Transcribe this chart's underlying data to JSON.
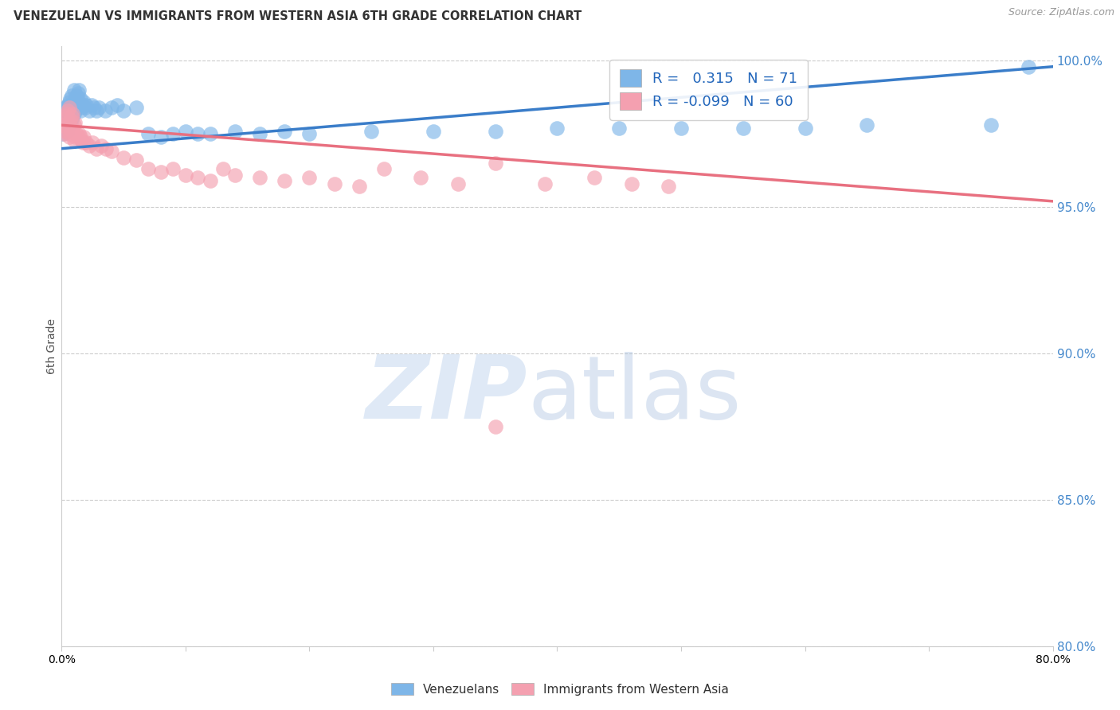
{
  "title": "VENEZUELAN VS IMMIGRANTS FROM WESTERN ASIA 6TH GRADE CORRELATION CHART",
  "source": "Source: ZipAtlas.com",
  "ylabel": "6th Grade",
  "r_blue": 0.315,
  "n_blue": 71,
  "r_pink": -0.099,
  "n_pink": 60,
  "xmin": 0.0,
  "xmax": 0.8,
  "ymin": 0.8,
  "ymax": 1.005,
  "right_ytick_vals": [
    1.0,
    0.95,
    0.9,
    0.85,
    0.8
  ],
  "right_ytick_labels": [
    "100.0%",
    "95.0%",
    "90.0%",
    "85.0%",
    "80.0%"
  ],
  "blue_color": "#7EB6E8",
  "pink_color": "#F4A0B0",
  "blue_line_color": "#3A7DC9",
  "pink_line_color": "#E87080",
  "background_color": "#FFFFFF",
  "blue_scatter_x": [
    0.001,
    0.002,
    0.002,
    0.003,
    0.003,
    0.004,
    0.004,
    0.004,
    0.005,
    0.005,
    0.005,
    0.006,
    0.006,
    0.006,
    0.007,
    0.007,
    0.007,
    0.008,
    0.008,
    0.008,
    0.009,
    0.009,
    0.01,
    0.01,
    0.01,
    0.011,
    0.011,
    0.012,
    0.012,
    0.013,
    0.013,
    0.014,
    0.014,
    0.015,
    0.015,
    0.016,
    0.017,
    0.018,
    0.019,
    0.02,
    0.022,
    0.024,
    0.026,
    0.028,
    0.03,
    0.035,
    0.04,
    0.045,
    0.05,
    0.06,
    0.07,
    0.08,
    0.09,
    0.1,
    0.11,
    0.12,
    0.14,
    0.16,
    0.18,
    0.2,
    0.25,
    0.3,
    0.35,
    0.4,
    0.45,
    0.5,
    0.55,
    0.6,
    0.65,
    0.75,
    0.78
  ],
  "blue_scatter_y": [
    0.975,
    0.978,
    0.982,
    0.979,
    0.984,
    0.976,
    0.98,
    0.984,
    0.977,
    0.981,
    0.985,
    0.978,
    0.982,
    0.986,
    0.979,
    0.983,
    0.987,
    0.98,
    0.984,
    0.988,
    0.981,
    0.985,
    0.982,
    0.986,
    0.99,
    0.983,
    0.987,
    0.984,
    0.988,
    0.985,
    0.989,
    0.986,
    0.99,
    0.983,
    0.987,
    0.984,
    0.985,
    0.986,
    0.984,
    0.985,
    0.983,
    0.985,
    0.984,
    0.983,
    0.984,
    0.983,
    0.984,
    0.985,
    0.983,
    0.984,
    0.975,
    0.974,
    0.975,
    0.976,
    0.975,
    0.975,
    0.976,
    0.975,
    0.976,
    0.975,
    0.976,
    0.976,
    0.976,
    0.977,
    0.977,
    0.977,
    0.977,
    0.977,
    0.978,
    0.978,
    0.998
  ],
  "pink_scatter_x": [
    0.001,
    0.002,
    0.002,
    0.003,
    0.003,
    0.004,
    0.004,
    0.005,
    0.005,
    0.006,
    0.006,
    0.006,
    0.007,
    0.007,
    0.008,
    0.008,
    0.009,
    0.009,
    0.01,
    0.01,
    0.011,
    0.011,
    0.012,
    0.013,
    0.014,
    0.015,
    0.016,
    0.017,
    0.018,
    0.02,
    0.022,
    0.025,
    0.028,
    0.032,
    0.036,
    0.04,
    0.05,
    0.06,
    0.07,
    0.08,
    0.09,
    0.1,
    0.11,
    0.12,
    0.13,
    0.14,
    0.16,
    0.18,
    0.2,
    0.22,
    0.24,
    0.26,
    0.29,
    0.32,
    0.35,
    0.39,
    0.43,
    0.46,
    0.49,
    0.35
  ],
  "pink_scatter_y": [
    0.978,
    0.975,
    0.98,
    0.976,
    0.981,
    0.977,
    0.982,
    0.978,
    0.983,
    0.974,
    0.979,
    0.984,
    0.975,
    0.98,
    0.976,
    0.981,
    0.977,
    0.982,
    0.973,
    0.978,
    0.974,
    0.979,
    0.975,
    0.974,
    0.975,
    0.974,
    0.973,
    0.972,
    0.974,
    0.972,
    0.971,
    0.972,
    0.97,
    0.971,
    0.97,
    0.969,
    0.967,
    0.966,
    0.963,
    0.962,
    0.963,
    0.961,
    0.96,
    0.959,
    0.963,
    0.961,
    0.96,
    0.959,
    0.96,
    0.958,
    0.957,
    0.963,
    0.96,
    0.958,
    0.965,
    0.958,
    0.96,
    0.958,
    0.957,
    0.875
  ],
  "blue_trend_x0": 0.0,
  "blue_trend_y0": 0.97,
  "blue_trend_x1": 0.8,
  "blue_trend_y1": 0.998,
  "pink_trend_x0": 0.0,
  "pink_trend_y0": 0.978,
  "pink_trend_x1": 0.8,
  "pink_trend_y1": 0.952
}
